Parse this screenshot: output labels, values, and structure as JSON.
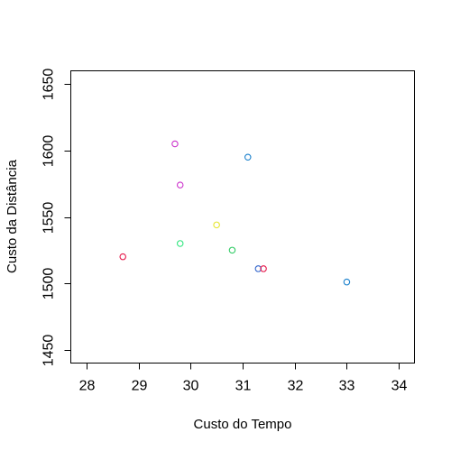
{
  "chart_data": {
    "type": "scatter",
    "title": "",
    "xlabel": "Custo do Tempo",
    "ylabel": "Custo da Distância",
    "xlim": [
      27.7,
      34.3
    ],
    "ylim": [
      1440,
      1660
    ],
    "xticks": [
      "28",
      "29",
      "30",
      "31",
      "32",
      "33",
      "34"
    ],
    "yticks": [
      "1450",
      "1500",
      "1550",
      "1600",
      "1650"
    ],
    "grid": false,
    "legend": "none",
    "marker": "open-circle",
    "points": [
      {
        "x": 28.7,
        "y": 1520,
        "color": "#e6194b"
      },
      {
        "x": 29.7,
        "y": 1605,
        "color": "#cc33cc"
      },
      {
        "x": 29.8,
        "y": 1574,
        "color": "#cc33cc"
      },
      {
        "x": 29.8,
        "y": 1530,
        "color": "#33e680"
      },
      {
        "x": 30.5,
        "y": 1544,
        "color": "#e6e633"
      },
      {
        "x": 30.8,
        "y": 1525,
        "color": "#33cc66"
      },
      {
        "x": 31.1,
        "y": 1595,
        "color": "#1a80cc"
      },
      {
        "x": 31.3,
        "y": 1511,
        "color": "#3366cc"
      },
      {
        "x": 31.4,
        "y": 1511,
        "color": "#e6194b"
      },
      {
        "x": 33.0,
        "y": 1501,
        "color": "#1a80cc"
      }
    ]
  }
}
